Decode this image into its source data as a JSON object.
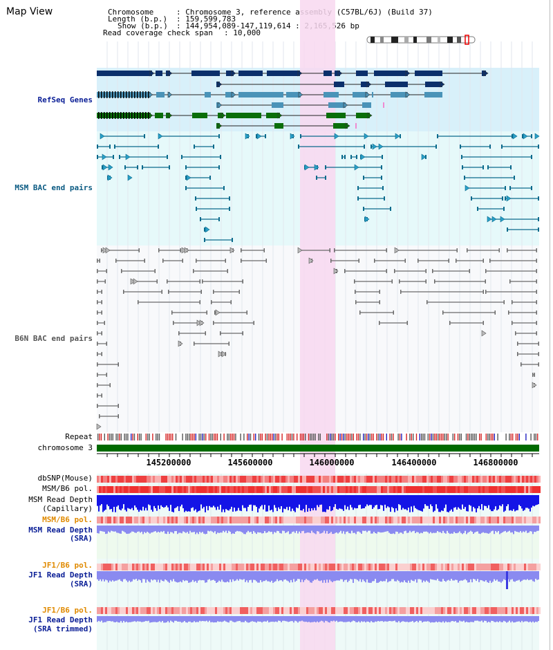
{
  "app": {
    "title": "Map View"
  },
  "info": {
    "chromosome_label": "Chromosome",
    "chromosome_value": ": Chromosome 3, reference assembly (C57BL/6J) (Build 37)",
    "length_label": "Length (b.p.)",
    "length_value": ": 159,599,783",
    "show_label": "Show (b.p.)",
    "show_value": ": 144,954,089-147,119,614 : 2,165,526 bp",
    "coverage_label": "Read coverage check span",
    "coverage_value": ": 10,000"
  },
  "tracks": {
    "refseq": "RefSeq Genes",
    "msm_bac": "MSM BAC end pairs",
    "b6n_bac": "B6N BAC end pairs",
    "repeat": "Repeat",
    "chromosome": "chromosome 3",
    "dbsnp": "dbSNP(Mouse)",
    "msm_b6_pol": "MSM/B6 pol.",
    "msm_depth_cap_1": "MSM Read Depth",
    "msm_depth_cap_2": "(Capillary)",
    "msm_b6_pol_2": "MSM/B6 pol.",
    "msm_depth_sra_1": "MSM Read Depth",
    "msm_depth_sra_2": "(SRA)",
    "jf1_b6_pol": "JF1/B6 pol.",
    "jf1_depth_sra_1": "JF1 Read Depth",
    "jf1_depth_sra_2": "(SRA)",
    "jf1_b6_pol_2": "JF1/B6 pol.",
    "jf1_depth_trim_1": "JF1 Read Depth",
    "jf1_depth_trim_2": "(SRA trimmed)"
  },
  "axis": {
    "ticks": [
      "145200000",
      "145600000",
      "146000000",
      "146400000",
      "146800000"
    ]
  },
  "colors": {
    "refseq_bg": "#d8f0fa",
    "bac_bg": "#e6f9fa",
    "highlight": "#f8d8f0",
    "chromosome_bar": "#006a00",
    "gene_dark": "#0b2f6b",
    "gene_mid": "#4a93b8",
    "gene_green": "#0a6e0a",
    "msm_bac": "#0a6a8c",
    "b6n_bac": "#6a6a6a",
    "depth_blue": "#1414e6",
    "depth_light": "#8a8af0"
  }
}
